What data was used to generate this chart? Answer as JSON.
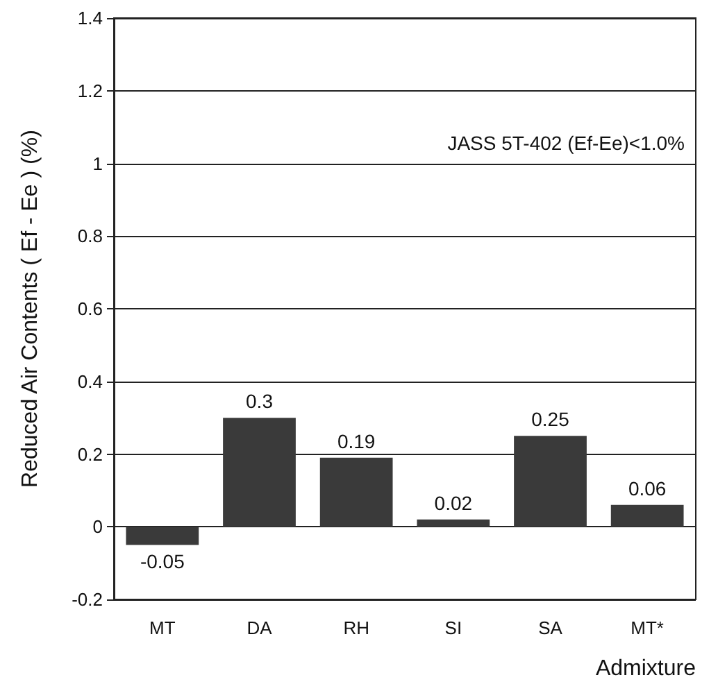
{
  "chart_data": {
    "type": "bar",
    "categories": [
      "MT",
      "DA",
      "RH",
      "SI",
      "SA",
      "MT*"
    ],
    "values": [
      -0.05,
      0.3,
      0.19,
      0.02,
      0.25,
      0.06
    ],
    "color": "#3a3a3a",
    "data_labels": true,
    "xlabel": "Admixture",
    "ylabel": "Reduced Air Contents ( Ef - Ee ) (%)",
    "ylim": [
      -0.2,
      1.4
    ],
    "yticks": [
      -0.2,
      0,
      0.2,
      0.4,
      0.6,
      0.8,
      1,
      1.2,
      1.4
    ],
    "grid": "y",
    "annotations": [
      "JASS 5T-402 (Ef-Ee)<1.0%"
    ]
  }
}
